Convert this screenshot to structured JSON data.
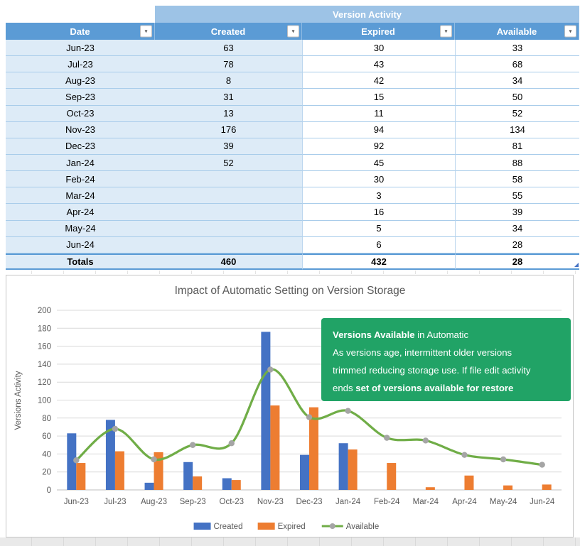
{
  "table": {
    "banner": "Version Activity",
    "columns": [
      "Date",
      "Created",
      "Expired",
      "Available"
    ],
    "filter_icon": "▾",
    "rows": [
      {
        "date": "Jun-23",
        "created": "63",
        "expired": "30",
        "available": "33"
      },
      {
        "date": "Jul-23",
        "created": "78",
        "expired": "43",
        "available": "68"
      },
      {
        "date": "Aug-23",
        "created": "8",
        "expired": "42",
        "available": "34"
      },
      {
        "date": "Sep-23",
        "created": "31",
        "expired": "15",
        "available": "50"
      },
      {
        "date": "Oct-23",
        "created": "13",
        "expired": "11",
        "available": "52"
      },
      {
        "date": "Nov-23",
        "created": "176",
        "expired": "94",
        "available": "134"
      },
      {
        "date": "Dec-23",
        "created": "39",
        "expired": "92",
        "available": "81"
      },
      {
        "date": "Jan-24",
        "created": "52",
        "expired": "45",
        "available": "88"
      },
      {
        "date": "Feb-24",
        "created": "",
        "expired": "30",
        "available": "58"
      },
      {
        "date": "Mar-24",
        "created": "",
        "expired": "3",
        "available": "55"
      },
      {
        "date": "Apr-24",
        "created": "",
        "expired": "16",
        "available": "39"
      },
      {
        "date": "May-24",
        "created": "",
        "expired": "5",
        "available": "34"
      },
      {
        "date": "Jun-24",
        "created": "",
        "expired": "6",
        "available": "28"
      }
    ],
    "totals": {
      "date": "Totals",
      "created": "460",
      "expired": "432",
      "available": "28"
    }
  },
  "chart_data": {
    "type": "bar+line combo",
    "title": "Impact of Automatic Setting on Version Storage",
    "xlabel": "",
    "ylabel": "Versions Activity",
    "ylim": [
      0,
      200
    ],
    "ytick_step": 20,
    "grid": true,
    "legend_position": "bottom",
    "categories": [
      "Jun-23",
      "Jul-23",
      "Aug-23",
      "Sep-23",
      "Oct-23",
      "Nov-23",
      "Dec-23",
      "Jan-24",
      "Feb-24",
      "Mar-24",
      "Apr-24",
      "May-24",
      "Jun-24"
    ],
    "series": [
      {
        "name": "Created",
        "type": "bar",
        "color": "#4472C4",
        "values": [
          63,
          78,
          8,
          31,
          13,
          176,
          39,
          52,
          null,
          null,
          null,
          null,
          null
        ]
      },
      {
        "name": "Expired",
        "type": "bar",
        "color": "#ED7D31",
        "values": [
          30,
          43,
          42,
          15,
          11,
          94,
          92,
          45,
          30,
          3,
          16,
          5,
          6
        ]
      },
      {
        "name": "Available",
        "type": "line",
        "color": "#70AD47",
        "marker_color": "#A5A5A5",
        "values": [
          33,
          68,
          34,
          50,
          52,
          134,
          81,
          88,
          58,
          55,
          39,
          34,
          28
        ]
      }
    ],
    "annotation": {
      "bg": "#21A366",
      "text_color": "#FFFFFF",
      "lines": [
        [
          {
            "text": "Versions Available",
            "bold": true
          },
          {
            "text": " in Automatic",
            "bold": false
          }
        ],
        [
          {
            "text": "As versions age, intermittent  older versions",
            "bold": false
          }
        ],
        [
          {
            "text": "trimmed reducing storage use. If file edit activity",
            "bold": false
          }
        ],
        [
          {
            "text": "ends ",
            "bold": false
          },
          {
            "text": "set of versions available for restore",
            "bold": true
          }
        ]
      ]
    }
  },
  "colors": {
    "header_blue": "#5B9BD5",
    "banner_blue": "#9DC3E6",
    "cell_blue": "#DDEBF7",
    "row_border": "#A8CCEA",
    "chart_border": "#C6C6C6",
    "axis_text": "#595959",
    "gridline": "#D9D9D9"
  }
}
